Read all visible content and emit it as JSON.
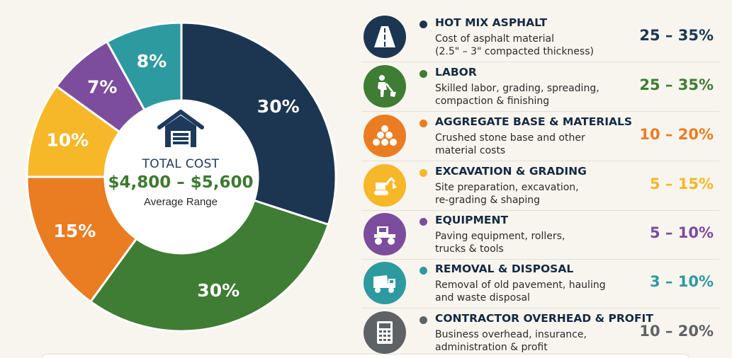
{
  "chart_data": {
    "type": "pie",
    "title": "",
    "categories": [
      "HOT MIX ASPHALT",
      "LABOR",
      "AGGREGATE BASE & MATERIALS",
      "EXCAVATION & GRADING",
      "EQUIPMENT",
      "REMOVAL & DISPOSAL"
    ],
    "values": [
      30,
      30,
      15,
      10,
      7,
      8
    ],
    "labels": [
      "30%",
      "30%",
      "15%",
      "10%",
      "7%",
      "8%"
    ],
    "colors": [
      "#1c3652",
      "#3f7c34",
      "#ea7c22",
      "#f6b728",
      "#7c4d9c",
      "#2d9aa0"
    ]
  },
  "center": {
    "title": "TOTAL COST",
    "value": "$4,800 – $5,600",
    "subtitle": "Average Range",
    "icon": "house-icon"
  },
  "legend": [
    {
      "title": "HOT MIX ASPHALT",
      "desc": [
        "Cost of asphalt material",
        "(2.5\" – 3\" compacted thickness)"
      ],
      "range": "25 – 35%",
      "color": "#1c3652",
      "icon": "road-icon"
    },
    {
      "title": "LABOR",
      "desc": [
        "Skilled labor, grading, spreading,",
        "compaction & finishing"
      ],
      "range": "25 – 35%",
      "color": "#3f7c34",
      "icon": "worker-shovel-icon"
    },
    {
      "title": "AGGREGATE BASE & MATERIALS",
      "desc": [
        "Crushed stone base and other",
        "material costs"
      ],
      "range": "10 – 20%",
      "color": "#ea7c22",
      "icon": "stone-pile-icon"
    },
    {
      "title": "EXCAVATION & GRADING",
      "desc": [
        "Site preparation, excavation,",
        "re-grading & shaping"
      ],
      "range": "5 – 15%",
      "color": "#f6b728",
      "icon": "excavator-icon"
    },
    {
      "title": "EQUIPMENT",
      "desc": [
        "Paving equipment, rollers,",
        "trucks & tools"
      ],
      "range": "5 – 10%",
      "color": "#7c4d9c",
      "icon": "roller-icon"
    },
    {
      "title": "REMOVAL & DISPOSAL",
      "desc": [
        "Removal of old pavement, hauling",
        "and waste disposal"
      ],
      "range": "3 – 10%",
      "color": "#2d9aa0",
      "icon": "dump-truck-icon"
    },
    {
      "title": "CONTRACTOR OVERHEAD & PROFIT",
      "desc": [
        "Business overhead, insurance,",
        "administration & profit"
      ],
      "range": "10 – 20%",
      "color": "#5f6264",
      "icon": "calculator-icon"
    }
  ]
}
